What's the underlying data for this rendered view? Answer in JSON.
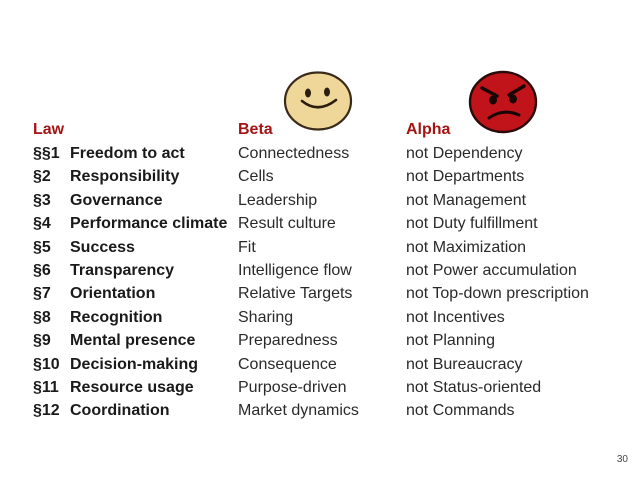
{
  "headers": {
    "law": "Law",
    "beta": "Beta",
    "alpha": "Alpha"
  },
  "faces": {
    "beta": {
      "icon": "smiley-face-icon",
      "color": "#efd79a"
    },
    "alpha": {
      "icon": "angry-face-icon",
      "color": "#c0141a"
    }
  },
  "header_color": "#a31515",
  "rows": [
    {
      "num": "§§1",
      "law": "Freedom to act",
      "beta": "Connectedness",
      "alpha": "not Dependency"
    },
    {
      "num": "§2",
      "law": "Responsibility",
      "beta": "Cells",
      "alpha": "not Departments"
    },
    {
      "num": "§3",
      "law": "Governance",
      "beta": "Leadership",
      "alpha": "not Management"
    },
    {
      "num": "§4",
      "law": "Performance climate",
      "beta": "Result culture",
      "alpha": "not Duty fulfillment"
    },
    {
      "num": "§5",
      "law": "Success",
      "beta": "Fit",
      "alpha": "not Maximization"
    },
    {
      "num": "§6",
      "law": "Transparency",
      "beta": "Intelligence flow",
      "alpha": "not Power accumulation"
    },
    {
      "num": "§7",
      "law": "Orientation",
      "beta": "Relative Targets",
      "alpha": "not Top-down prescription"
    },
    {
      "num": "§8",
      "law": "Recognition",
      "beta": "Sharing",
      "alpha": "not Incentives"
    },
    {
      "num": "§9",
      "law": "Mental presence",
      "beta": "Preparedness",
      "alpha": "not Planning"
    },
    {
      "num": "§10",
      "law": "Decision-making",
      "beta": "Consequence",
      "alpha": "not Bureaucracy"
    },
    {
      "num": "§11",
      "law": "Resource usage",
      "beta": "Purpose-driven",
      "alpha": "not Status-oriented"
    },
    {
      "num": "§12",
      "law": "Coordination",
      "beta": "Market dynamics",
      "alpha": "not Commands"
    }
  ],
  "page_number": "30"
}
